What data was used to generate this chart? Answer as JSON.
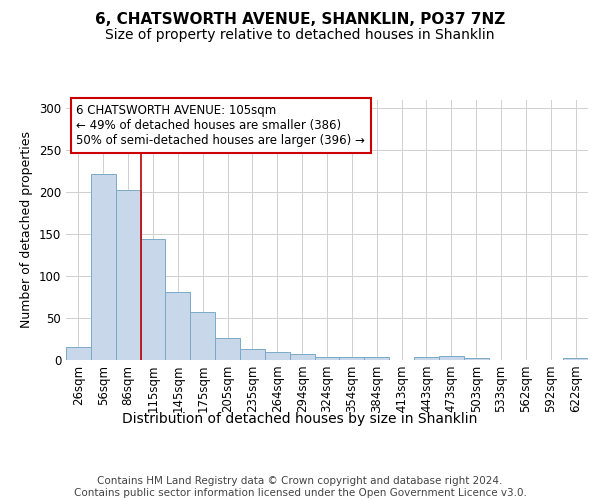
{
  "title": "6, CHATSWORTH AVENUE, SHANKLIN, PO37 7NZ",
  "subtitle": "Size of property relative to detached houses in Shanklin",
  "xlabel": "Distribution of detached houses by size in Shanklin",
  "ylabel": "Number of detached properties",
  "categories": [
    "26sqm",
    "56sqm",
    "86sqm",
    "115sqm",
    "145sqm",
    "175sqm",
    "205sqm",
    "235sqm",
    "264sqm",
    "294sqm",
    "324sqm",
    "354sqm",
    "384sqm",
    "413sqm",
    "443sqm",
    "473sqm",
    "503sqm",
    "533sqm",
    "562sqm",
    "592sqm",
    "622sqm"
  ],
  "values": [
    15,
    222,
    203,
    144,
    81,
    57,
    26,
    13,
    10,
    7,
    4,
    4,
    3,
    0,
    4,
    5,
    2,
    0,
    0,
    0,
    2
  ],
  "bar_color": "#c8d8ea",
  "bar_edge_color": "#7aaac8",
  "grid_color": "#d0d0d0",
  "background_color": "#ffffff",
  "annotation_line1": "6 CHATSWORTH AVENUE: 105sqm",
  "annotation_line2": "← 49% of detached houses are smaller (386)",
  "annotation_line3": "50% of semi-detached houses are larger (396) →",
  "annotation_box_color": "#ffffff",
  "annotation_box_edge_color": "#cc0000",
  "vline_x": 2.5,
  "vline_color": "#bb0000",
  "footer": "Contains HM Land Registry data © Crown copyright and database right 2024.\nContains public sector information licensed under the Open Government Licence v3.0.",
  "ylim": [
    0,
    310
  ],
  "title_fontsize": 11,
  "subtitle_fontsize": 10,
  "xlabel_fontsize": 10,
  "ylabel_fontsize": 9,
  "tick_fontsize": 8.5,
  "annotation_fontsize": 8.5,
  "footer_fontsize": 7.5
}
